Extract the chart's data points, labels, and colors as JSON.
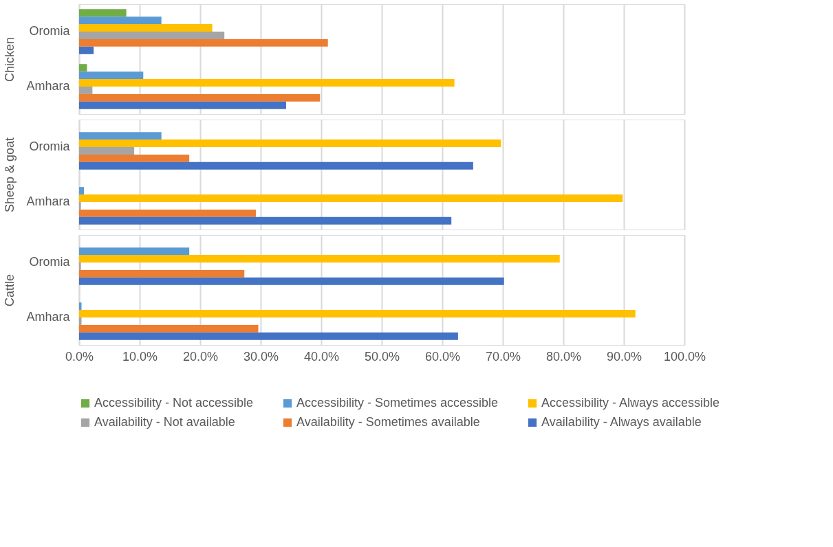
{
  "chart_data": [
    {
      "type": "bar",
      "orientation": "horizontal",
      "ylabel": "Chicken",
      "categories": [
        "Oromia",
        "Amhara"
      ],
      "xlim": [
        0,
        100
      ],
      "xticks": [
        {
          "value": 0,
          "label": null
        },
        {
          "value": 10,
          "label": null
        },
        {
          "value": 20,
          "label": null
        },
        {
          "value": 30,
          "label": null
        },
        {
          "value": 40,
          "label": null
        },
        {
          "value": 50,
          "label": null
        },
        {
          "value": 60,
          "label": null
        },
        {
          "value": 70,
          "label": null
        },
        {
          "value": 80,
          "label": null
        },
        {
          "value": 90,
          "label": null
        },
        {
          "value": 100,
          "label": null
        }
      ],
      "grid": "x",
      "legend": false,
      "tick_labels": "y",
      "series": [
        {
          "color": "#70ad47",
          "values": [
            7.8,
            1.3
          ]
        },
        {
          "color": "#5b9bd5",
          "values": [
            13.6,
            10.6
          ]
        },
        {
          "color": "#ffc000",
          "values": [
            22.0,
            62.0
          ]
        },
        {
          "color": "#a5a5a5",
          "values": [
            24.0,
            2.2
          ]
        },
        {
          "color": "#ed7d31",
          "values": [
            41.1,
            39.8
          ]
        },
        {
          "color": "#4472c4",
          "values": [
            2.4,
            34.2
          ]
        }
      ]
    },
    {
      "type": "bar",
      "orientation": "horizontal",
      "ylabel": "Sheep & goat",
      "categories": [
        "Oromia",
        "Amhara"
      ],
      "xlim": [
        0,
        100
      ],
      "xticks": [
        {
          "value": 0,
          "label": null
        },
        {
          "value": 10,
          "label": null
        },
        {
          "value": 20,
          "label": null
        },
        {
          "value": 30,
          "label": null
        },
        {
          "value": 40,
          "label": null
        },
        {
          "value": 50,
          "label": null
        },
        {
          "value": 60,
          "label": null
        },
        {
          "value": 70,
          "label": null
        },
        {
          "value": 80,
          "label": null
        },
        {
          "value": 90,
          "label": null
        },
        {
          "value": 100,
          "label": null
        }
      ],
      "grid": "x",
      "legend": false,
      "tick_labels": "y",
      "series": [
        {
          "color": "#70ad47",
          "values": [
            0,
            0
          ]
        },
        {
          "color": "#5b9bd5",
          "values": [
            13.6,
            0.8
          ]
        },
        {
          "color": "#ffc000",
          "values": [
            69.7,
            89.8
          ]
        },
        {
          "color": "#a5a5a5",
          "values": [
            9.1,
            0.3
          ]
        },
        {
          "color": "#ed7d31",
          "values": [
            18.2,
            29.2
          ]
        },
        {
          "color": "#4472c4",
          "values": [
            65.1,
            61.5
          ]
        }
      ]
    },
    {
      "type": "bar",
      "orientation": "horizontal",
      "ylabel": "Cattle",
      "categories": [
        "Oromia",
        "Amhara"
      ],
      "xlim": [
        0,
        100
      ],
      "xticks": [
        {
          "value": 0,
          "label": "0.0%"
        },
        {
          "value": 10,
          "label": "10.0%"
        },
        {
          "value": 20,
          "label": "20.0%"
        },
        {
          "value": 30,
          "label": "30.0%"
        },
        {
          "value": 40,
          "label": "40.0%"
        },
        {
          "value": 50,
          "label": "50.0%"
        },
        {
          "value": 60,
          "label": "60.0%"
        },
        {
          "value": 70,
          "label": "70.0%"
        },
        {
          "value": 80,
          "label": "80.0%"
        },
        {
          "value": 90,
          "label": "90.0%"
        },
        {
          "value": 100,
          "label": "100.0%"
        }
      ],
      "grid": "x",
      "legend": "bottom",
      "series": [
        {
          "name": "Accessibility - Not accessible",
          "color": "#70ad47",
          "values": [
            0,
            0
          ]
        },
        {
          "name": "Accessibility - Sometimes accessible",
          "color": "#5b9bd5",
          "values": [
            18.2,
            0.4
          ]
        },
        {
          "name": "Accessibility - Always accessible",
          "color": "#ffc000",
          "values": [
            79.4,
            91.9
          ]
        },
        {
          "name": "Availability - Not available",
          "color": "#a5a5a5",
          "values": [
            0.3,
            0.4
          ]
        },
        {
          "name": "Availability - Sometimes available",
          "color": "#ed7d31",
          "values": [
            27.3,
            29.6
          ]
        },
        {
          "name": "Availability - Always available",
          "color": "#4472c4",
          "values": [
            70.2,
            62.6
          ]
        }
      ]
    }
  ]
}
